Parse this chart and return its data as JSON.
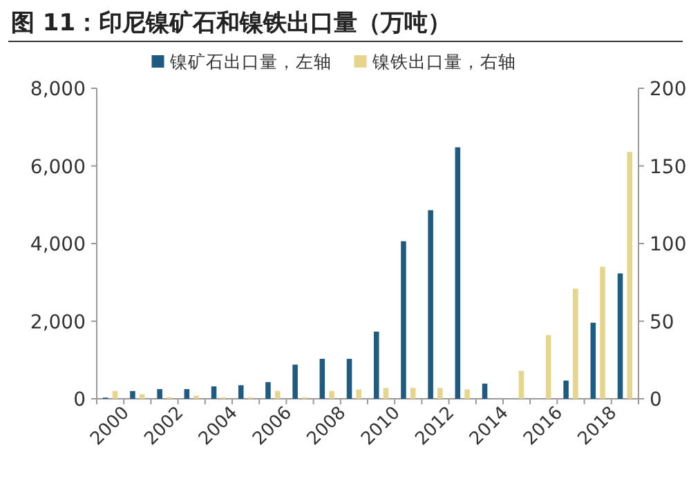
{
  "chart_data": {
    "type": "bar",
    "title": "图 11：印尼镍矿石和镍铁出口量（万吨）",
    "categories": [
      "2000",
      null,
      "2002",
      null,
      "2004",
      null,
      "2006",
      null,
      "2008",
      null,
      "2010",
      null,
      "2012",
      null,
      "2014",
      null,
      "2016",
      null,
      "2018",
      null
    ],
    "series": [
      {
        "name": "镍矿石出口量，左轴",
        "color": "#1f5b80",
        "values": [
          30,
          200,
          250,
          250,
          320,
          350,
          430,
          880,
          1030,
          1030,
          1730,
          4060,
          4860,
          6480,
          390,
          0,
          0,
          470,
          1960,
          3230
        ]
      },
      {
        "name": "镍铁出口量，右轴",
        "color": "#e6d58c",
        "axis": "y2",
        "values": [
          5,
          3,
          1,
          2,
          1,
          1,
          5,
          1,
          5,
          6,
          7,
          7,
          7,
          6,
          0,
          18,
          41,
          71,
          85,
          159
        ]
      }
    ],
    "ylim": [
      0,
      8000
    ],
    "yticks": [
      {
        "value": 0,
        "label": "0"
      },
      {
        "value": 2000,
        "label": "2,000"
      },
      {
        "value": 4000,
        "label": "4,000"
      },
      {
        "value": 6000,
        "label": "6,000"
      },
      {
        "value": 8000,
        "label": "8,000"
      }
    ],
    "y2lim": [
      0,
      200
    ],
    "y2ticks": [
      0,
      50,
      100,
      150,
      200
    ],
    "legend": "top",
    "grid": false
  }
}
